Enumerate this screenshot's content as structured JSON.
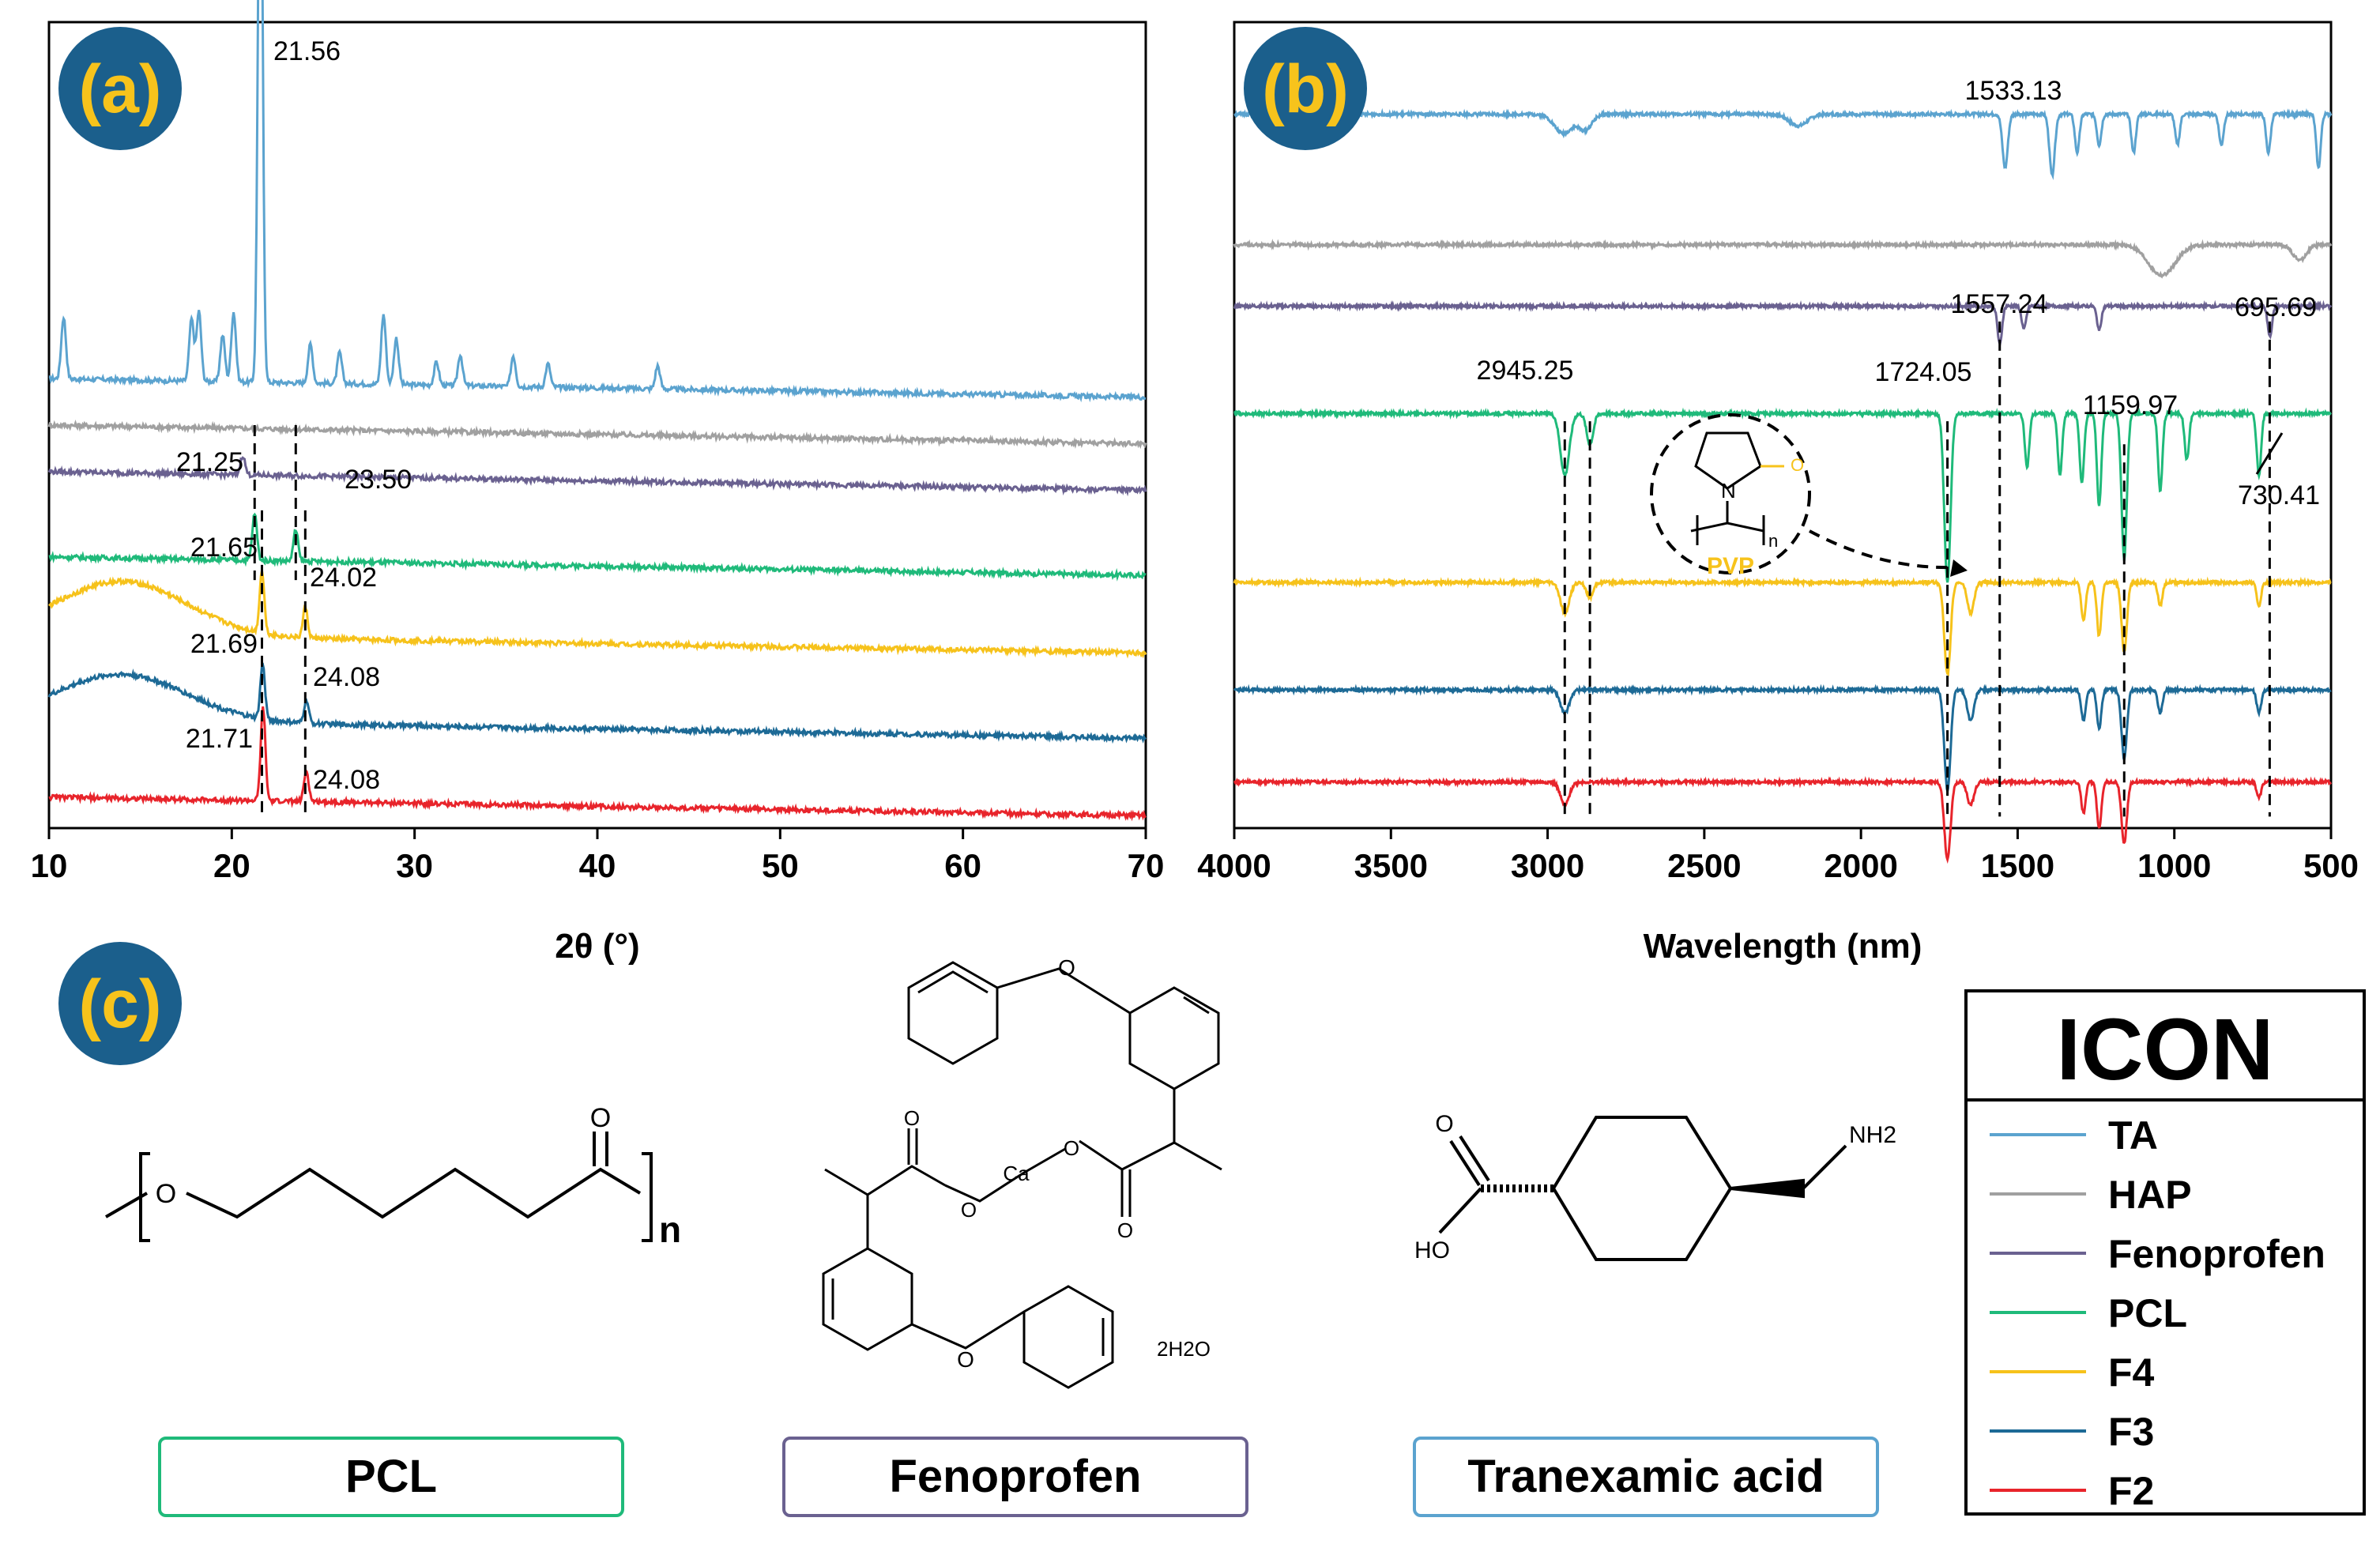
{
  "panel_badges": [
    "(a)",
    "(b)",
    "(c)"
  ],
  "chart_data": [
    {
      "type": "line",
      "panel": "(a)",
      "xlabel": "2θ (°)",
      "ylabel": "",
      "xlim": [
        10,
        70
      ],
      "x_ticks": [
        "10",
        "20",
        "30",
        "40",
        "50",
        "60",
        "70"
      ],
      "y_ticks": false,
      "grid": false,
      "series": [
        {
          "name": "TA",
          "color": "#5ba3cf",
          "baseline": 5.6,
          "peaks": [
            [
              10.8,
              0.8
            ],
            [
              17.8,
              0.8
            ],
            [
              18.2,
              0.9
            ],
            [
              19.5,
              0.6
            ],
            [
              20.1,
              0.9
            ],
            [
              21.56,
              7.9
            ],
            [
              24.3,
              0.5
            ],
            [
              25.9,
              0.4
            ],
            [
              28.3,
              0.9
            ],
            [
              29.0,
              0.6
            ],
            [
              31.2,
              0.3
            ],
            [
              32.5,
              0.4
            ],
            [
              35.4,
              0.4
            ],
            [
              37.3,
              0.3
            ],
            [
              43.3,
              0.3
            ]
          ]
        },
        {
          "name": "HAP",
          "color": "#a0a0a0",
          "baseline": 5.0,
          "peaks": []
        },
        {
          "name": "Fenoprofen",
          "color": "#6a6190",
          "baseline": 4.4,
          "peaks": [
            [
              20.6,
              0.25
            ]
          ]
        },
        {
          "name": "PCL",
          "color": "#1fba7a",
          "baseline": 3.3,
          "peaks": [
            [
              21.25,
              0.6
            ],
            [
              23.5,
              0.4
            ]
          ]
        },
        {
          "name": "F4",
          "color": "#f6c21b",
          "baseline": 2.3,
          "hump": [
            14,
            0.7
          ],
          "peaks": [
            [
              21.65,
              0.8
            ],
            [
              24.02,
              0.4
            ]
          ]
        },
        {
          "name": "F3",
          "color": "#1d6a96",
          "baseline": 1.2,
          "hump": [
            14,
            0.6
          ],
          "peaks": [
            [
              21.69,
              0.7
            ],
            [
              24.08,
              0.3
            ]
          ]
        },
        {
          "name": "F2",
          "color": "#e8242b",
          "baseline": 0.2,
          "peaks": [
            [
              21.71,
              1.2
            ],
            [
              24.08,
              0.4
            ]
          ]
        }
      ],
      "annotations": [
        {
          "text": "21.56",
          "x": 21.56
        },
        {
          "text": "21.25",
          "x": 21.25
        },
        {
          "text": "23.50",
          "x": 23.5
        },
        {
          "text": "21.65",
          "x": 21.65
        },
        {
          "text": "24.02",
          "x": 24.02
        },
        {
          "text": "21.69",
          "x": 21.69
        },
        {
          "text": "24.08",
          "x": 24.08
        },
        {
          "text": "21.71",
          "x": 21.71
        },
        {
          "text": "24.08",
          "x": 24.08
        }
      ]
    },
    {
      "type": "line",
      "panel": "(b)",
      "xlabel": "Wavelength (nm)",
      "ylabel": "",
      "xlim": [
        4000,
        500
      ],
      "x_ticks": [
        "4000",
        "3500",
        "3000",
        "2500",
        "2000",
        "1500",
        "1000",
        "500"
      ],
      "y_ticks": false,
      "grid": false,
      "series": [
        {
          "name": "TA",
          "color": "#5ba3cf",
          "baseline": 9.3
        },
        {
          "name": "HAP",
          "color": "#a0a0a0",
          "baseline": 7.6
        },
        {
          "name": "Fenoprofen",
          "color": "#6a6190",
          "baseline": 6.8
        },
        {
          "name": "PCL",
          "color": "#1fba7a",
          "baseline": 5.4
        },
        {
          "name": "F4",
          "color": "#f6c21b",
          "baseline": 3.2
        },
        {
          "name": "F3",
          "color": "#1d6a96",
          "baseline": 1.8
        },
        {
          "name": "F2",
          "color": "#e8242b",
          "baseline": 0.6
        }
      ],
      "annotations": [
        {
          "text": "1533.13",
          "x": 1533.13
        },
        {
          "text": "1557.24",
          "x": 1557.24
        },
        {
          "text": "695.69",
          "x": 695.69
        },
        {
          "text": "2945.25",
          "x": 2945.25
        },
        {
          "text": "1724.05",
          "x": 1724.05
        },
        {
          "text": "1159.97",
          "x": 1159.97
        },
        {
          "text": "730.41",
          "x": 730.41
        }
      ],
      "inset_label": "PVP",
      "inset_atoms": {
        "nitrogen": "N",
        "oxygen": "O",
        "repeat": "n"
      }
    }
  ],
  "legend": {
    "title": "ICON",
    "items": [
      {
        "name": "TA",
        "color": "#5ba3cf"
      },
      {
        "name": "HAP",
        "color": "#a0a0a0"
      },
      {
        "name": "Fenoprofen",
        "color": "#6a6190"
      },
      {
        "name": "PCL",
        "color": "#1fba7a"
      },
      {
        "name": "F4",
        "color": "#f6c21b"
      },
      {
        "name": "F3",
        "color": "#1d6a96"
      },
      {
        "name": "F2",
        "color": "#e8242b"
      }
    ]
  },
  "structures": {
    "pcl": {
      "label": "PCL",
      "border": "#1fba7a",
      "atoms": {
        "o1": "O",
        "o2": "O",
        "n": "n"
      }
    },
    "fenoprofen": {
      "label": "Fenoprofen",
      "border": "#6a6190",
      "atoms": {
        "o_top": "O",
        "o_bottom": "O",
        "o_carb1": "O",
        "o_est1": "O",
        "ca": "Ca",
        "o_est2": "O",
        "o_carb2": "O",
        "water": "2H2O"
      }
    },
    "tranexamic": {
      "label": "Tranexamic acid",
      "border": "#5ba3cf",
      "atoms": {
        "o": "O",
        "ho": "HO",
        "nh2": "NH2"
      }
    }
  },
  "colors": {
    "badge_fill": "#1b5f8c",
    "badge_text": "#f7c31c",
    "pvp": "#f7c31c",
    "axis": "#000000"
  }
}
